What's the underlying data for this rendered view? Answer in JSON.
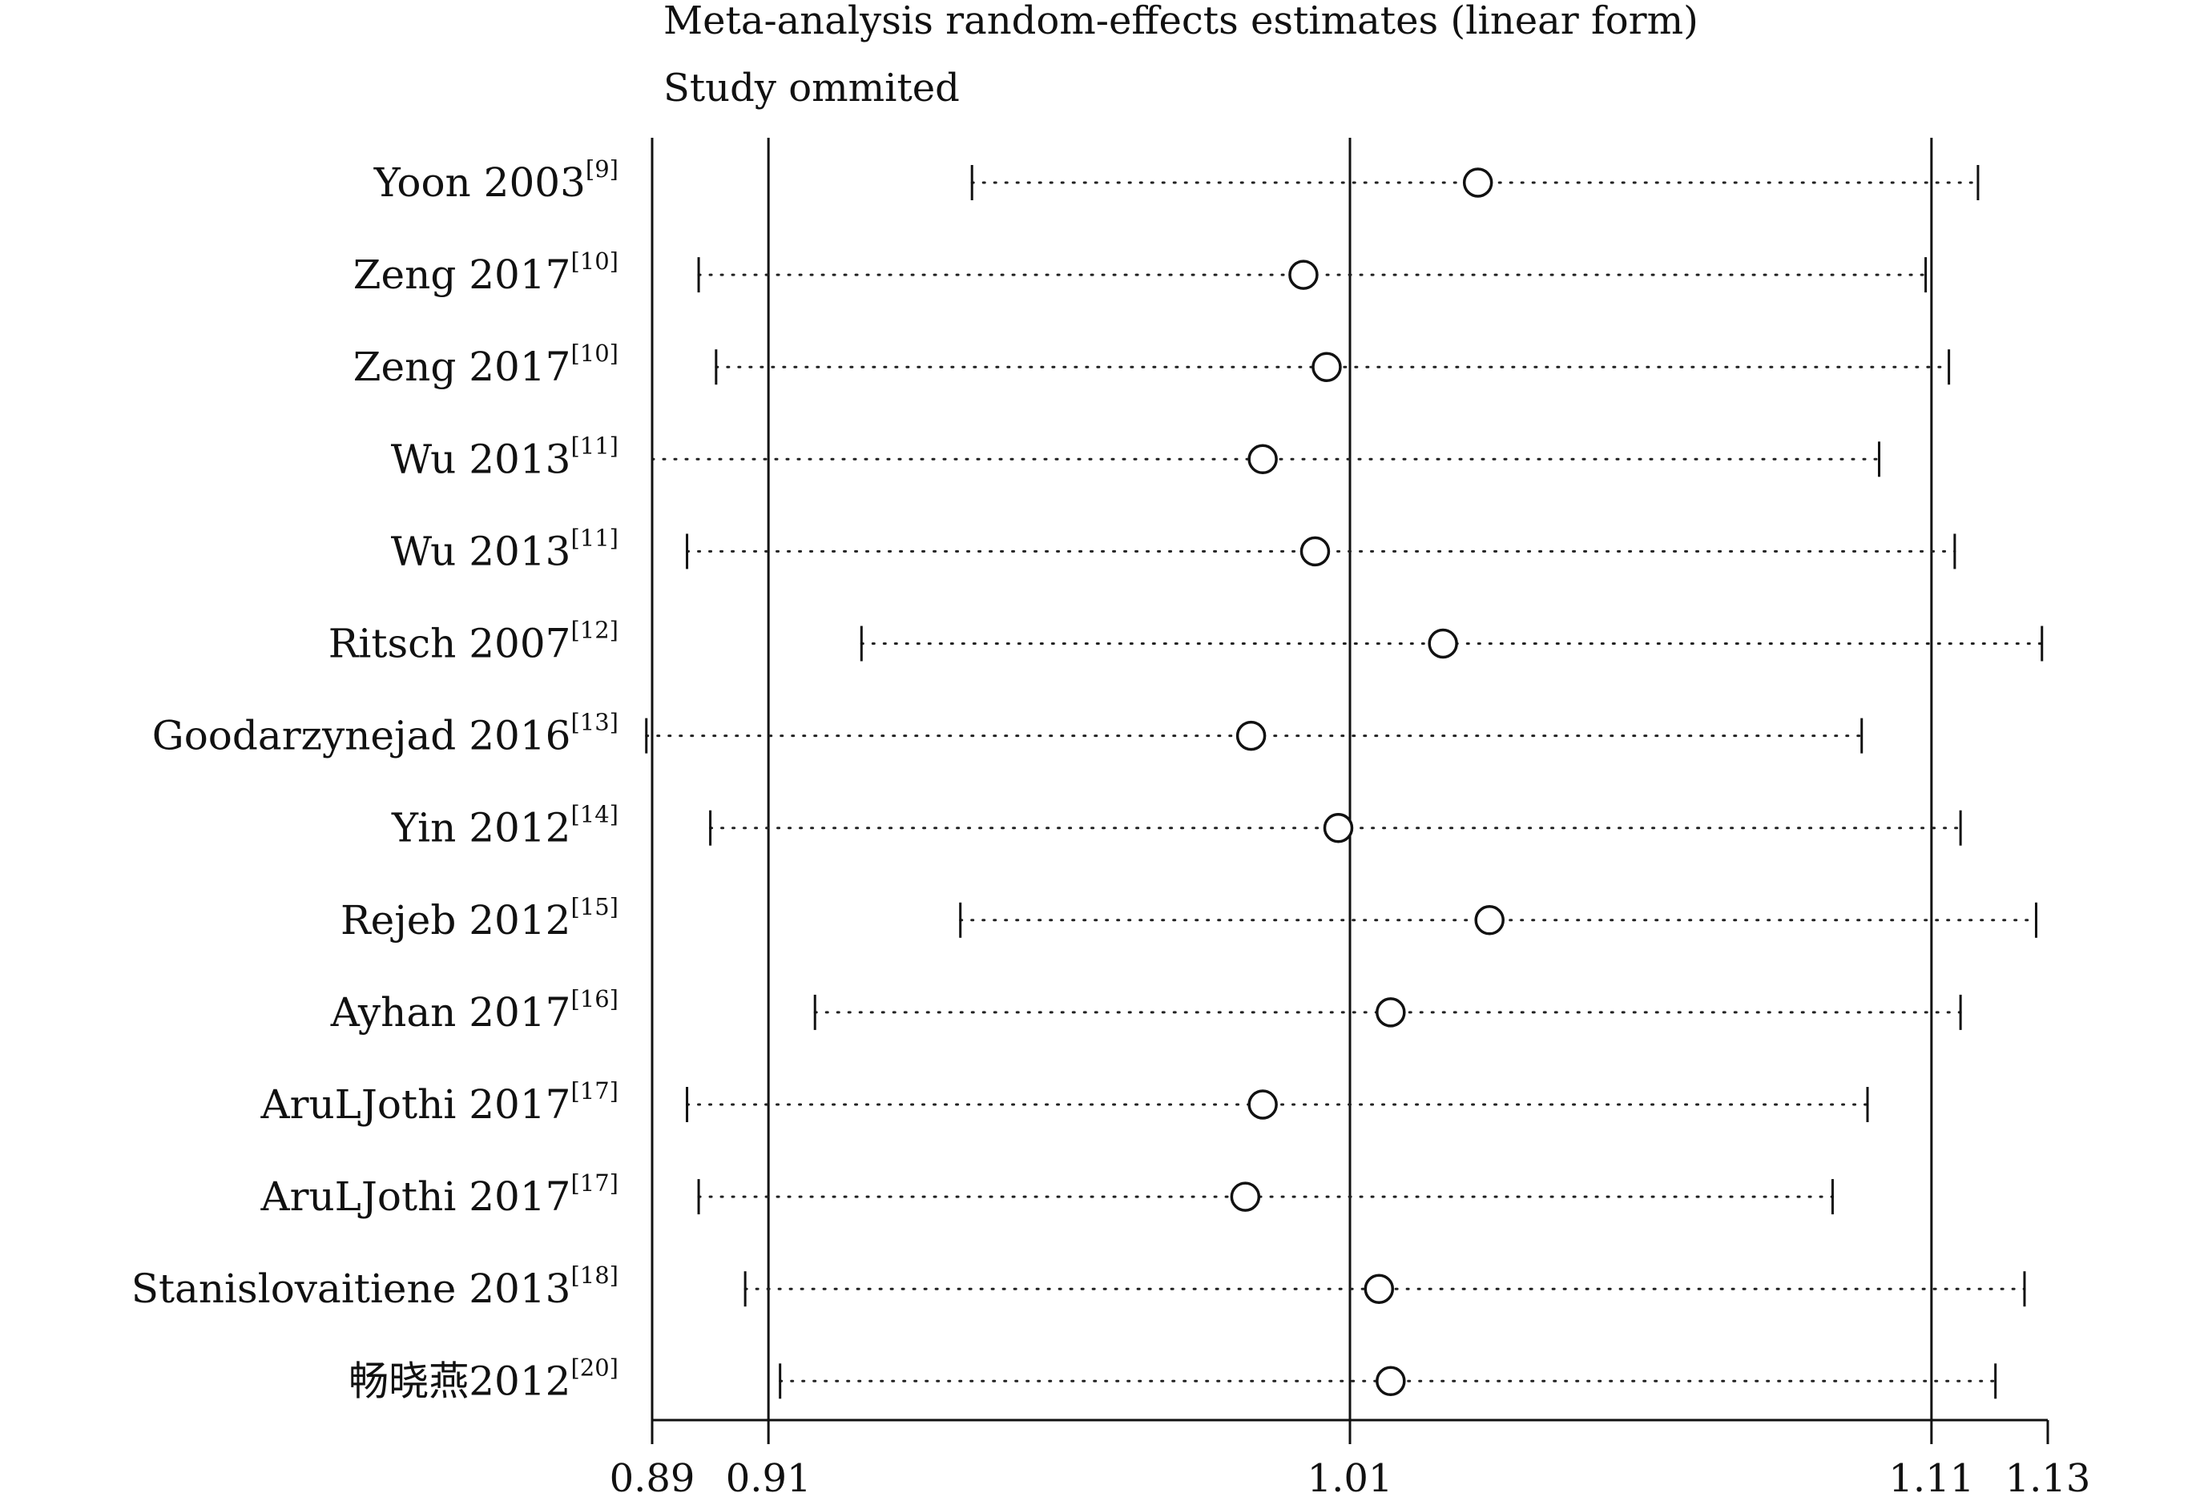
{
  "chart_data": {
    "type": "forest",
    "title": "Meta-analysis random-effects estimates (linear form)",
    "subtitle": "Study ommited",
    "x_ticks": [
      0.89,
      0.91,
      1.01,
      1.11,
      1.13
    ],
    "x_tick_labels": [
      "0.89",
      "0.91",
      "1.01",
      "1.11",
      "1.13"
    ],
    "reference_lines": [
      0.91,
      1.01,
      1.11
    ],
    "xlim": [
      0.89,
      1.13
    ],
    "studies": [
      {
        "name": "Yoon 2003",
        "ref": "[9]",
        "estimate": 1.032,
        "lower": 0.945,
        "upper": 1.118
      },
      {
        "name": "Zeng 2017",
        "ref": "[10]",
        "estimate": 1.002,
        "lower": 0.898,
        "upper": 1.109
      },
      {
        "name": "Zeng 2017",
        "ref": "[10]",
        "estimate": 1.006,
        "lower": 0.901,
        "upper": 1.113
      },
      {
        "name": "Wu 2013",
        "ref": "[11]",
        "estimate": 0.995,
        "lower": 0.89,
        "upper": 1.101
      },
      {
        "name": "Wu 2013",
        "ref": "[11]",
        "estimate": 1.004,
        "lower": 0.896,
        "upper": 1.114
      },
      {
        "name": "Ritsch 2007",
        "ref": "[12]",
        "estimate": 1.026,
        "lower": 0.926,
        "upper": 1.129
      },
      {
        "name": "Goodarzynejad 2016",
        "ref": "[13]",
        "estimate": 0.993,
        "lower": 0.889,
        "upper": 1.098
      },
      {
        "name": "Yin 2012",
        "ref": "[14]",
        "estimate": 1.008,
        "lower": 0.9,
        "upper": 1.115
      },
      {
        "name": "Rejeb 2012",
        "ref": "[15]",
        "estimate": 1.034,
        "lower": 0.943,
        "upper": 1.128
      },
      {
        "name": "Ayhan 2017",
        "ref": "[16]",
        "estimate": 1.017,
        "lower": 0.918,
        "upper": 1.115
      },
      {
        "name": "AruLJothi 2017",
        "ref": "[17]",
        "estimate": 0.995,
        "lower": 0.896,
        "upper": 1.099
      },
      {
        "name": "AruLJothi 2017",
        "ref": "[17]",
        "estimate": 0.992,
        "lower": 0.898,
        "upper": 1.093
      },
      {
        "name": "Stanislovaitiene 2013",
        "ref": "[18]",
        "estimate": 1.015,
        "lower": 0.906,
        "upper": 1.126
      },
      {
        "name": "畅晓燕2012",
        "ref": "[20]",
        "estimate": 1.017,
        "lower": 0.912,
        "upper": 1.121
      }
    ],
    "grid": false,
    "legend": "none"
  }
}
